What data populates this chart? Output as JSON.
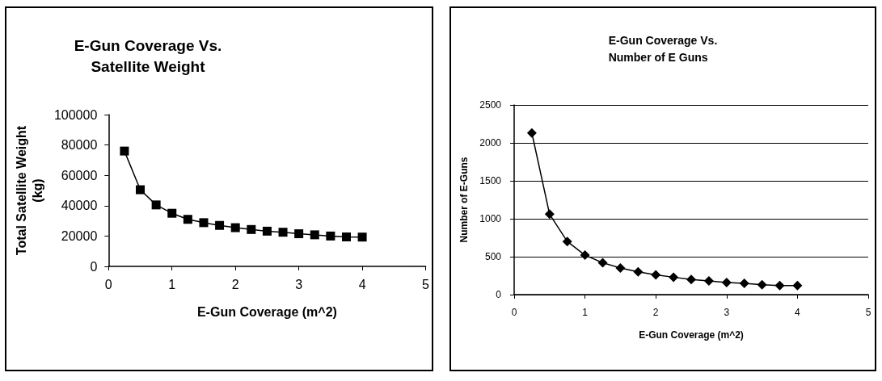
{
  "chart_data": [
    {
      "type": "line",
      "title": "E-Gun Coverage Vs.\nSatellite Weight",
      "xlabel": "E-Gun Coverage (m^2)",
      "ylabel": "Total Satellite Weight\n(kg)",
      "x": [
        0.25,
        0.5,
        0.75,
        1,
        1.25,
        1.5,
        1.75,
        2,
        2.25,
        2.5,
        2.75,
        3,
        3.25,
        3.5,
        3.75,
        4
      ],
      "series": [
        {
          "color": "#000000",
          "values": [
            76000,
            50500,
            40500,
            35000,
            31000,
            28800,
            27000,
            25500,
            24300,
            23200,
            22500,
            21500,
            20800,
            20000,
            19400,
            19300
          ]
        }
      ],
      "xlim": [
        0,
        5
      ],
      "xticks": [
        0,
        1,
        2,
        3,
        4,
        5
      ],
      "ylim": [
        0,
        100000
      ],
      "yticks": [
        0,
        20000,
        40000,
        60000,
        80000,
        100000
      ],
      "grid": false,
      "marker": "square",
      "line_style": "solid"
    },
    {
      "type": "line",
      "title": "E-Gun Coverage Vs.\nNumber of E Guns",
      "xlabel": "E-Gun Coverage (m^2)",
      "ylabel": "Number of E-Guns",
      "x": [
        0.25,
        0.5,
        0.75,
        1,
        1.25,
        1.5,
        1.75,
        2,
        2.25,
        2.5,
        2.75,
        3,
        3.25,
        3.5,
        3.75,
        4
      ],
      "series": [
        {
          "color": "#000000",
          "values": [
            2130,
            1060,
            700,
            520,
            420,
            350,
            300,
            260,
            230,
            200,
            180,
            160,
            150,
            130,
            120,
            120
          ]
        }
      ],
      "xlim": [
        0,
        5
      ],
      "xticks": [
        0,
        1,
        2,
        3,
        4,
        5
      ],
      "ylim": [
        0,
        2500
      ],
      "yticks": [
        0,
        500,
        1000,
        1500,
        2000,
        2500
      ],
      "grid": "y",
      "marker": "diamond",
      "line_style": "solid"
    }
  ]
}
